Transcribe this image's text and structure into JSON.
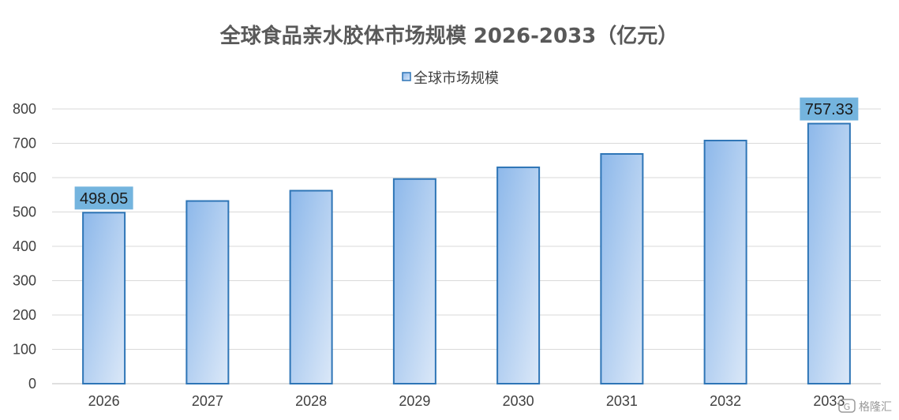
{
  "chart_data": {
    "type": "bar",
    "title": "全球食品亲水胶体市场规模 2026-2033（亿元）",
    "categories": [
      "2026",
      "2027",
      "2028",
      "2029",
      "2030",
      "2031",
      "2032",
      "2033"
    ],
    "series": [
      {
        "name": "全球市场规模",
        "values": [
          498.05,
          532,
          562,
          596,
          630,
          669,
          708,
          757.33
        ]
      }
    ],
    "data_labels": [
      {
        "category": "2026",
        "text": "498.05"
      },
      {
        "category": "2033",
        "text": "757.33"
      }
    ],
    "y_ticks": [
      "0",
      "100",
      "200",
      "300",
      "400",
      "500",
      "600",
      "700",
      "800"
    ],
    "ylim": [
      0,
      800
    ],
    "grid": true,
    "legend": "top-center",
    "colors": {
      "bar_top": "#8db8ea",
      "bar_bottom": "#dbe8f8",
      "bar_border": "#2e75b6",
      "label_bg": "#74b4de",
      "grid": "#d9d9d9",
      "title": "#595959"
    }
  },
  "watermark": {
    "text": "格隆汇",
    "icon": "gelonghui-logo-icon"
  }
}
